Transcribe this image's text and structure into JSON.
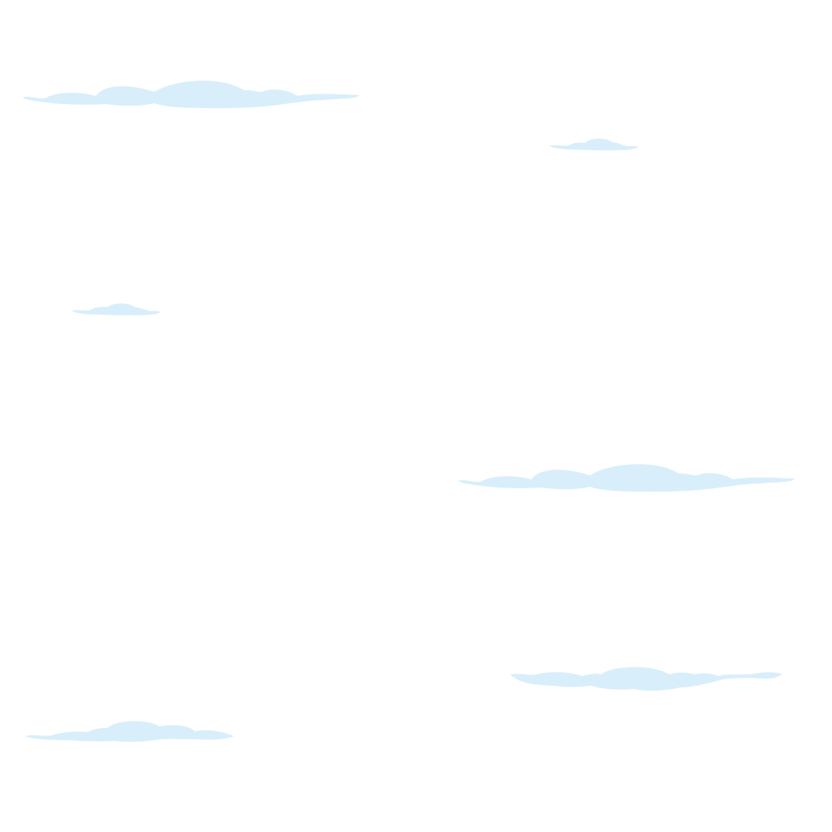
{
  "scene": {
    "background_color": "#ffffff",
    "cloud_color": "#d9eefb",
    "cloud_count": 6
  }
}
